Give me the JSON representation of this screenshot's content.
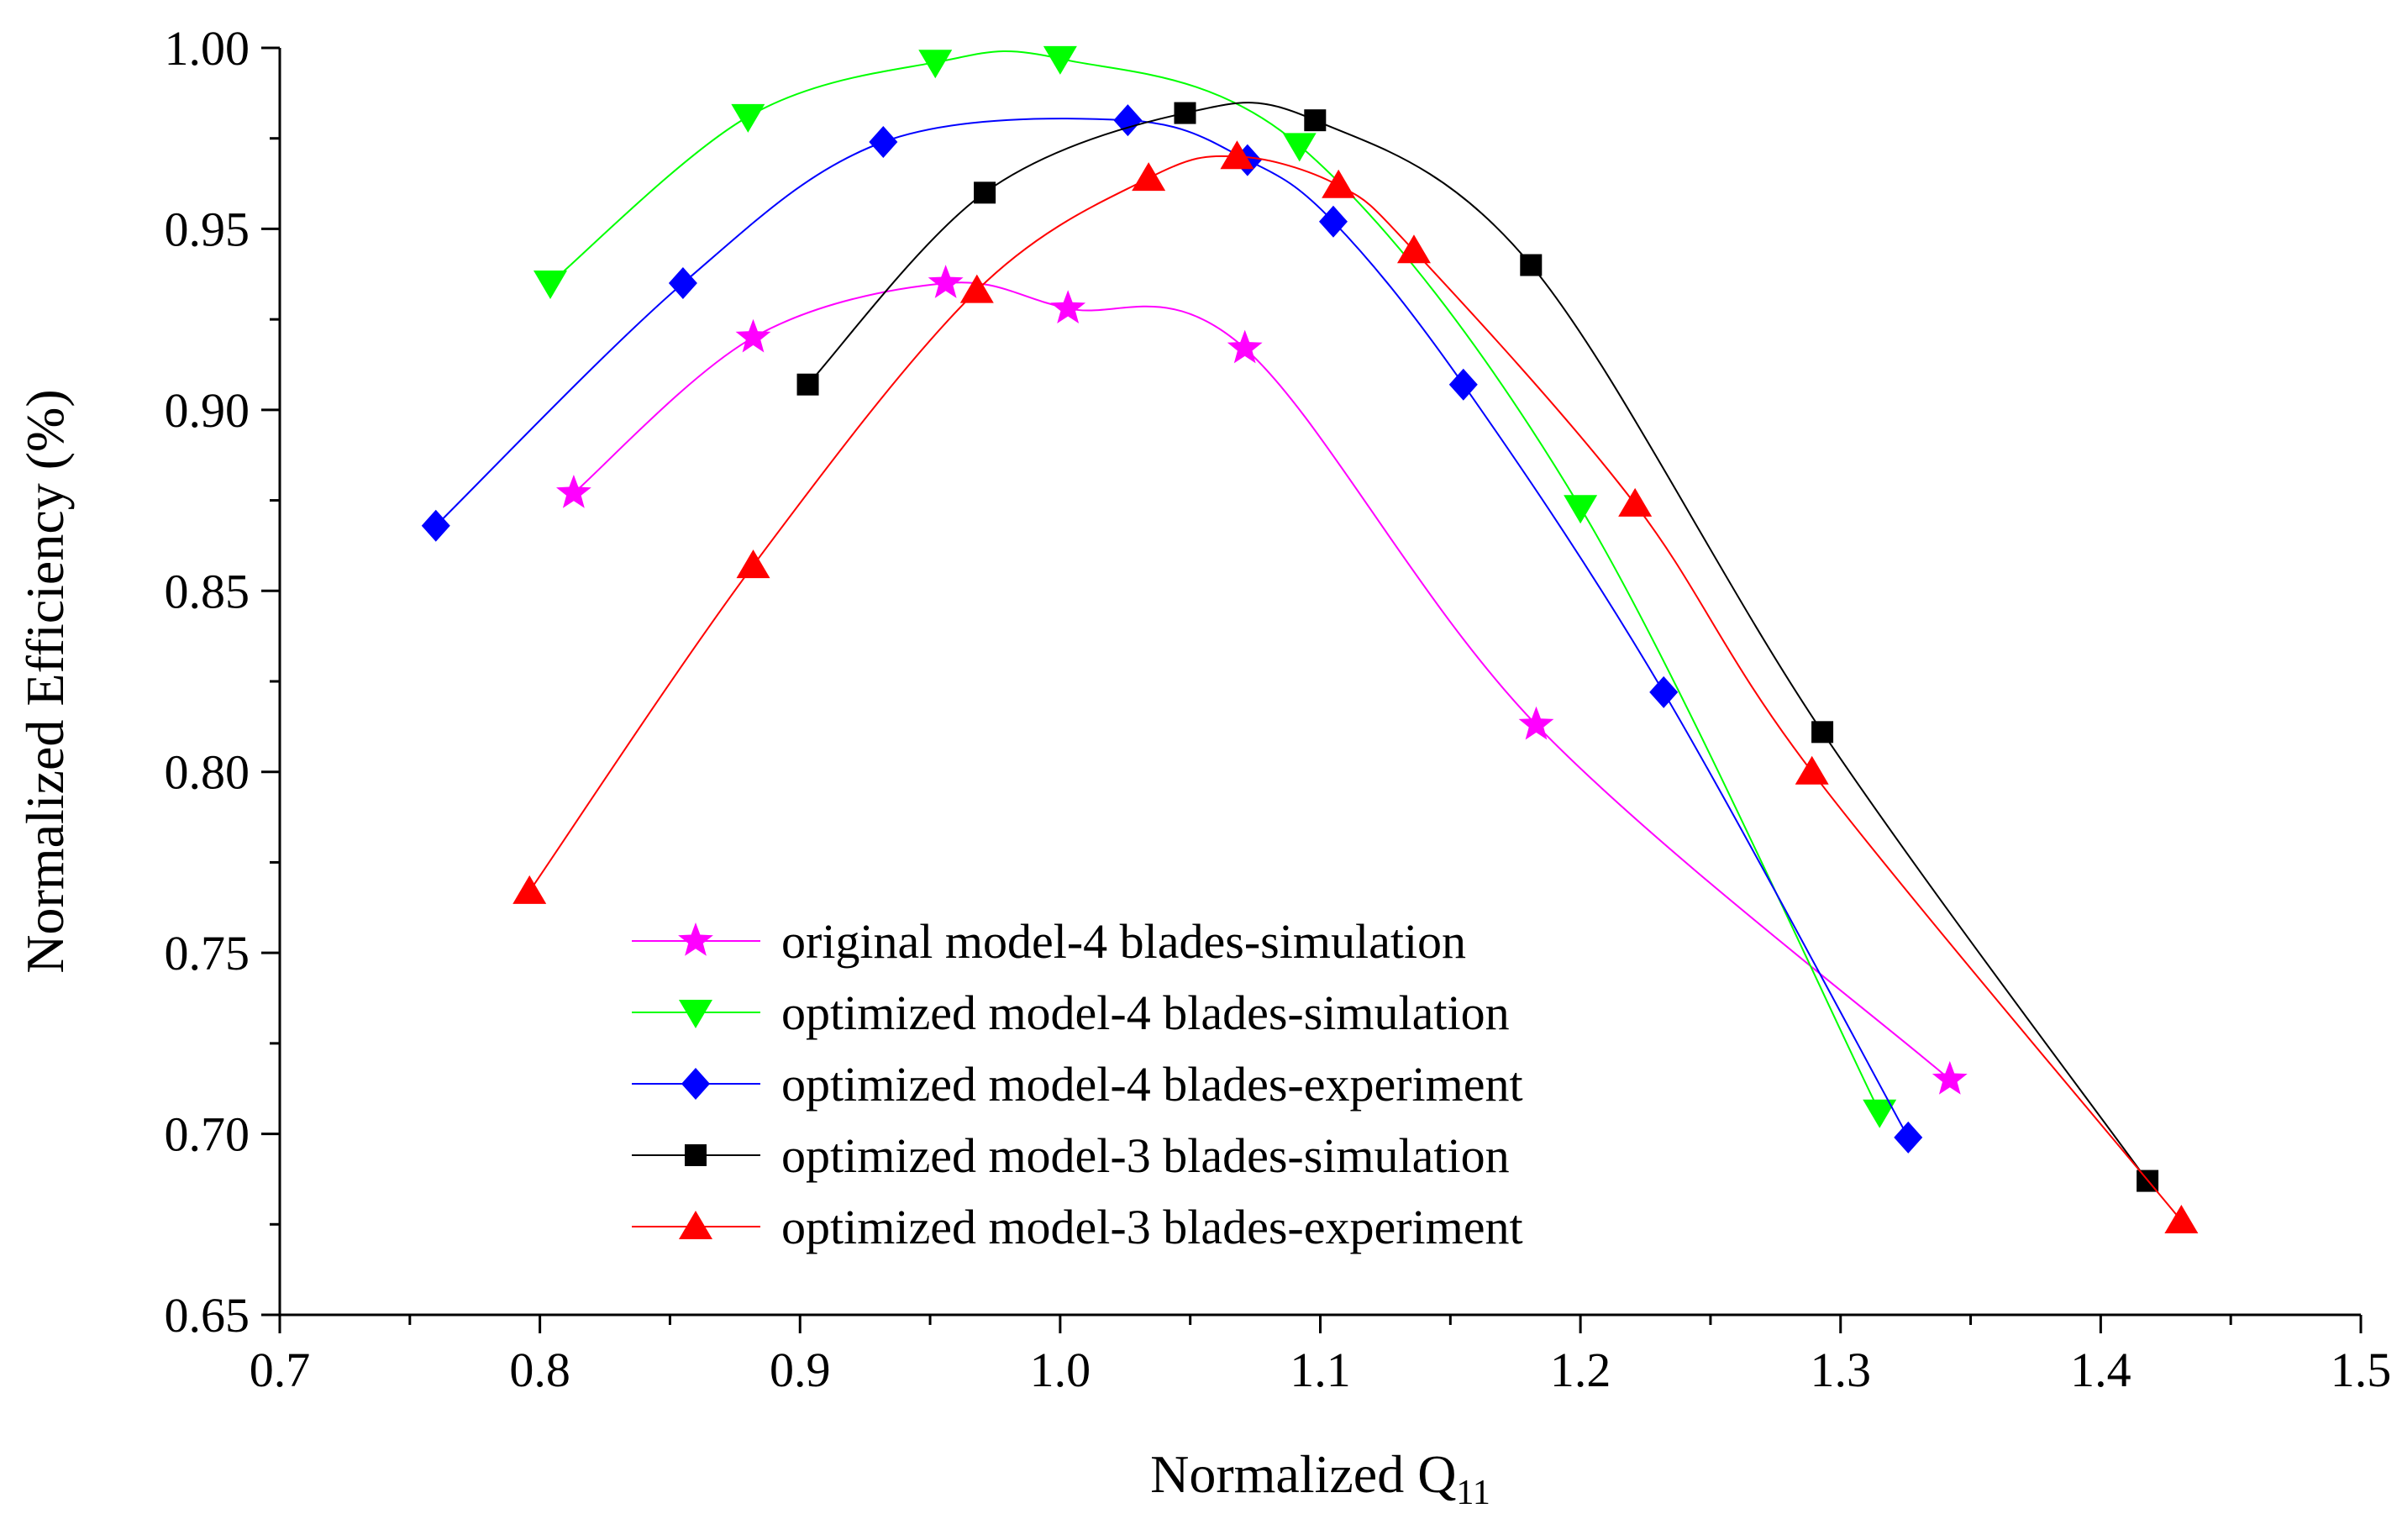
{
  "chart_data": {
    "type": "line",
    "title": "",
    "xlabel": "Normalized Q",
    "xlabel_subscript": "11",
    "ylabel": "Normalized Efficiency (%)",
    "xlim": [
      0.7,
      1.5
    ],
    "ylim": [
      0.65,
      1.0
    ],
    "xticks": [
      "0.7",
      "0.8",
      "0.9",
      "1.0",
      "1.1",
      "1.2",
      "1.3",
      "1.4",
      "1.5"
    ],
    "yticks": [
      "0.65",
      "0.70",
      "0.75",
      "0.80",
      "0.85",
      "0.90",
      "0.95",
      "1.00"
    ],
    "legend_position": "bottom-center",
    "series": [
      {
        "name": "original model-4 blades-simulation",
        "marker": "star",
        "color": "#ff00ff",
        "x": [
          0.813,
          0.882,
          0.956,
          1.003,
          1.071,
          1.183,
          1.342
        ],
        "y": [
          0.877,
          0.92,
          0.935,
          0.928,
          0.917,
          0.813,
          0.715
        ]
      },
      {
        "name": "optimized model-4 blades-simulation",
        "marker": "triangle-down",
        "color": "#00ff00",
        "x": [
          0.804,
          0.88,
          0.952,
          1.0,
          1.092,
          1.2,
          1.315
        ],
        "y": [
          0.935,
          0.981,
          0.996,
          0.997,
          0.973,
          0.873,
          0.706
        ]
      },
      {
        "name": "optimized model-4 blades-experiment",
        "marker": "diamond",
        "color": "#0000ff",
        "x": [
          0.76,
          0.855,
          0.932,
          1.026,
          1.072,
          1.105,
          1.155,
          1.232,
          1.326
        ],
        "y": [
          0.868,
          0.935,
          0.974,
          0.98,
          0.969,
          0.952,
          0.907,
          0.822,
          0.699
        ]
      },
      {
        "name": "optimized model-3 blades-simulation",
        "marker": "square",
        "color": "#000000",
        "x": [
          0.903,
          0.971,
          1.048,
          1.098,
          1.181,
          1.293,
          1.418
        ],
        "y": [
          0.907,
          0.96,
          0.982,
          0.98,
          0.94,
          0.811,
          0.687
        ]
      },
      {
        "name": "optimized model-3 blades-experiment",
        "marker": "triangle-up",
        "color": "#ff0000",
        "x": [
          0.796,
          0.882,
          0.968,
          1.034,
          1.068,
          1.107,
          1.136,
          1.221,
          1.289,
          1.431
        ],
        "y": [
          0.767,
          0.857,
          0.933,
          0.964,
          0.97,
          0.962,
          0.944,
          0.874,
          0.8,
          0.676
        ]
      }
    ]
  }
}
